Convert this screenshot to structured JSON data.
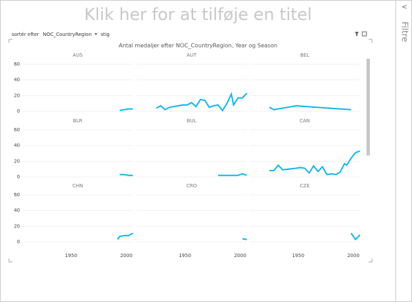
{
  "header": {
    "title": "Klik her for at tilføje en titel"
  },
  "sort": {
    "label": "sortér efter",
    "field": "NOC_CountryRegion",
    "order": "stig"
  },
  "filter_pane": {
    "label": "Filtre"
  },
  "chart_data": {
    "type": "line",
    "title": "Antal medaljer efter NOC_CountryRegion, Year og Season",
    "color": "#13b5ea",
    "xlim": [
      1906,
      2006
    ],
    "xticks": [
      1950,
      2000
    ],
    "ylim": [
      0,
      60
    ],
    "yticks": [
      0,
      20,
      40,
      60
    ],
    "grid": true,
    "panels": [
      {
        "name": "AUS",
        "x": [
          1994,
          1998,
          2002,
          2006
        ],
        "values": [
          1,
          2,
          3,
          3
        ]
      },
      {
        "name": "AUT",
        "x": [
          1924,
          1928,
          1932,
          1936,
          1948,
          1952,
          1956,
          1960,
          1964,
          1968,
          1972,
          1976,
          1980,
          1984,
          1988,
          1992,
          1994,
          1998,
          2002,
          2006
        ],
        "values": [
          4,
          7,
          2,
          5,
          8,
          8,
          11,
          6,
          15,
          14,
          5,
          7,
          8,
          1,
          10,
          22,
          8,
          17,
          17,
          23
        ]
      },
      {
        "name": "BEL",
        "x": [
          1924,
          1928,
          1948,
          1998
        ],
        "values": [
          5,
          2,
          7,
          2
        ]
      },
      {
        "name": "BLR",
        "x": [
          1994,
          1998,
          2002,
          2006
        ],
        "values": [
          3,
          3,
          2,
          2
        ]
      },
      {
        "name": "BUL",
        "x": [
          1980,
          1984,
          1988,
          1992,
          1994,
          1998,
          2002,
          2006
        ],
        "values": [
          2,
          2,
          2,
          2,
          2,
          2,
          4,
          2
        ]
      },
      {
        "name": "CAN",
        "x": [
          1924,
          1928,
          1932,
          1936,
          1948,
          1952,
          1956,
          1960,
          1964,
          1968,
          1972,
          1976,
          1980,
          1984,
          1988,
          1992,
          1994,
          1998,
          2002,
          2006
        ],
        "values": [
          8,
          8,
          15,
          9,
          11,
          12,
          11,
          5,
          14,
          7,
          13,
          3,
          4,
          3,
          6,
          17,
          15,
          24,
          31,
          33
        ]
      },
      {
        "name": "CHN",
        "x": [
          1992,
          1994,
          1998,
          2002,
          2006
        ],
        "values": [
          3,
          7,
          8,
          8,
          11
        ]
      },
      {
        "name": "CRO",
        "x": [
          2002,
          2006
        ],
        "values": [
          4,
          3
        ]
      },
      {
        "name": "CZE",
        "x": [
          1998,
          2002,
          2006
        ],
        "values": [
          11,
          3,
          9
        ]
      }
    ]
  }
}
